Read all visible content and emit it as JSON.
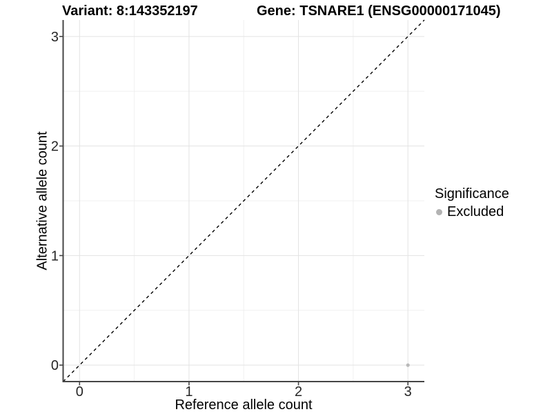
{
  "chart_data": {
    "type": "scatter",
    "title_left": "Variant: 8:143352197",
    "title_right": "Gene: TSNARE1 (ENSG00000171045)",
    "xlabel": "Reference allele count",
    "ylabel": "Alternative allele count",
    "xlim": [
      -0.15,
      3.15
    ],
    "ylim": [
      -0.15,
      3.15
    ],
    "xticks": [
      0,
      1,
      2,
      3
    ],
    "yticks": [
      0,
      1,
      2,
      3
    ],
    "minor_ticks": [
      0.5,
      1.5,
      2.5
    ],
    "grid": true,
    "points": [
      {
        "x": 3,
        "y": 0,
        "series": "Excluded"
      }
    ],
    "reference_line": {
      "type": "identity y=x",
      "style": "dashed",
      "color": "#000000"
    },
    "legend": {
      "title": "Significance",
      "position": "right",
      "items": [
        {
          "label": "Excluded",
          "color": "#b3b3b3"
        }
      ]
    },
    "colors": {
      "point": "#b9b9b9",
      "grid_major": "#e3e3e3",
      "grid_minor": "#f0f0f0",
      "axis_line": "#454545",
      "axis_text": "#262626",
      "title_text": "#000000",
      "background": "#ffffff"
    }
  }
}
